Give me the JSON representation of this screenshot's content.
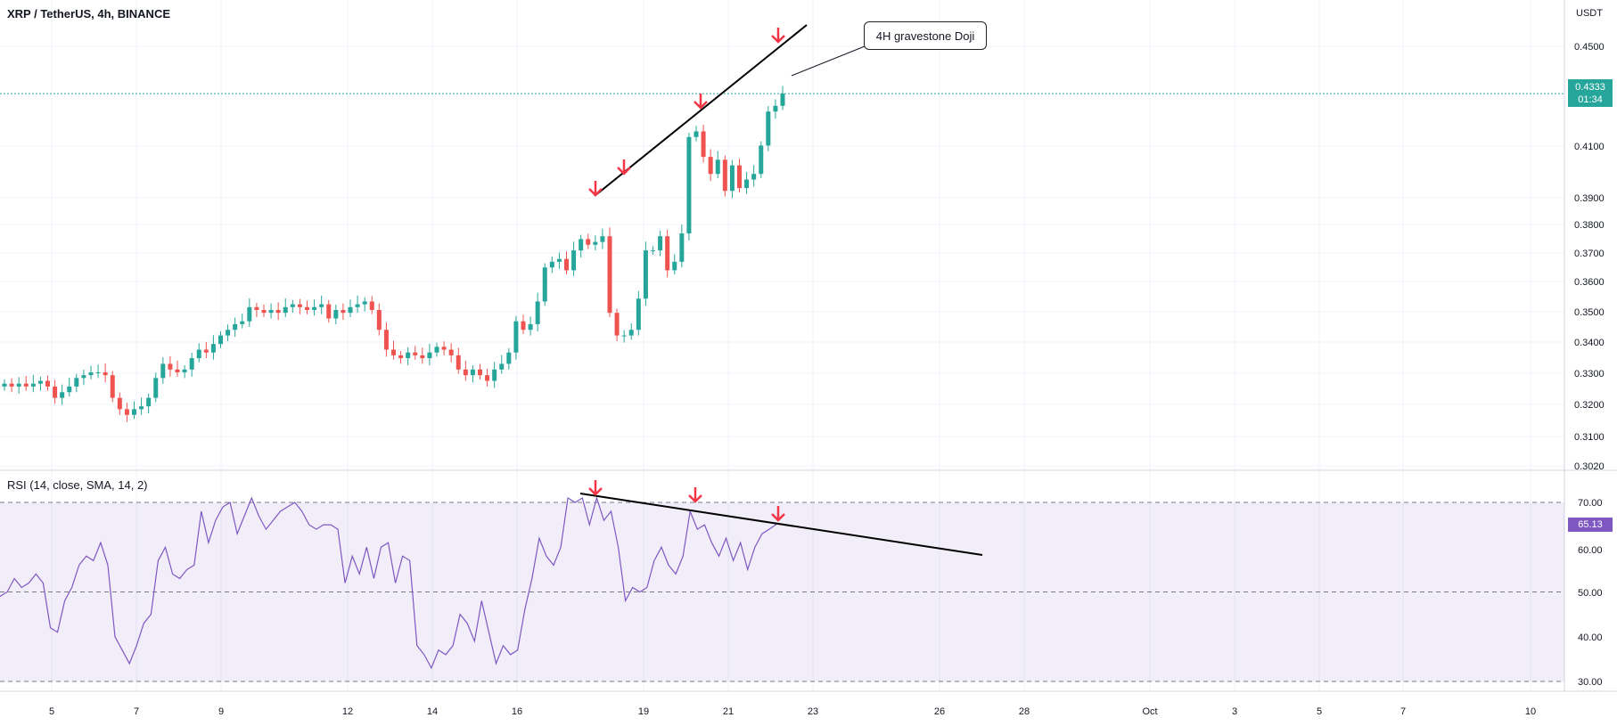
{
  "header": {
    "title": "XRP / TetherUS, 4h, BINANCE"
  },
  "price_axis": {
    "currency": "USDT",
    "ticks": [
      "0.4500",
      "0.4100",
      "0.3900",
      "0.3800",
      "0.3700",
      "0.3600",
      "0.3500",
      "0.3400",
      "0.3300",
      "0.3200",
      "0.3100",
      "0.3020"
    ]
  },
  "last_price": {
    "value": "0.4333",
    "countdown": "01:34",
    "color": "#26a69a"
  },
  "annotation": {
    "text": "4H gravestone Doji"
  },
  "rsi": {
    "title": "RSI (14, close, SMA, 14, 2)",
    "ticks": [
      "70.00",
      "60.00",
      "50.00",
      "40.00",
      "30.00"
    ],
    "current": "65.13",
    "color": "#7e57c2"
  },
  "time_axis": {
    "labels": [
      "5",
      "7",
      "9",
      "12",
      "14",
      "16",
      "19",
      "21",
      "23",
      "26",
      "28",
      "Oct",
      "3",
      "5",
      "7",
      "10"
    ]
  },
  "colors": {
    "up": "#26a69a",
    "down": "#ef5350",
    "arrow": "#f23645",
    "trendline": "#000000"
  },
  "chart_data": [
    {
      "type": "candlestick",
      "title": "XRP / TetherUS, 4h, BINANCE",
      "ylabel": "USDT",
      "ylim": [
        0.302,
        0.462
      ],
      "close_series": [
        0.331,
        0.33,
        0.331,
        0.33,
        0.331,
        0.332,
        0.33,
        0.326,
        0.328,
        0.33,
        0.333,
        0.334,
        0.335,
        0.335,
        0.334,
        0.326,
        0.322,
        0.32,
        0.322,
        0.323,
        0.326,
        0.333,
        0.338,
        0.336,
        0.335,
        0.336,
        0.34,
        0.343,
        0.342,
        0.345,
        0.348,
        0.35,
        0.352,
        0.353,
        0.358,
        0.357,
        0.356,
        0.357,
        0.356,
        0.358,
        0.359,
        0.358,
        0.357,
        0.358,
        0.359,
        0.354,
        0.357,
        0.356,
        0.358,
        0.359,
        0.36,
        0.357,
        0.35,
        0.343,
        0.341,
        0.34,
        0.342,
        0.341,
        0.34,
        0.342,
        0.344,
        0.343,
        0.341,
        0.336,
        0.334,
        0.336,
        0.334,
        0.332,
        0.336,
        0.338,
        0.342,
        0.353,
        0.35,
        0.352,
        0.36,
        0.372,
        0.374,
        0.375,
        0.371,
        0.378,
        0.382,
        0.38,
        0.381,
        0.383,
        0.356,
        0.348,
        0.348,
        0.35,
        0.361,
        0.378,
        0.378,
        0.383,
        0.371,
        0.374,
        0.384,
        0.418,
        0.42,
        0.411,
        0.405,
        0.41,
        0.399,
        0.408,
        0.4,
        0.403,
        0.405,
        0.415,
        0.427,
        0.429,
        0.4333
      ],
      "annotations": [
        "4H gravestone Doji"
      ]
    },
    {
      "type": "line",
      "title": "RSI (14, close, SMA, 14, 2)",
      "ylim": [
        30,
        70
      ],
      "levels": [
        70,
        50,
        30
      ],
      "series": [
        {
          "values": [
            49,
            50,
            53,
            51,
            52,
            54,
            52,
            42,
            41,
            48,
            51,
            56,
            58,
            57,
            61,
            56,
            40,
            37,
            34,
            38,
            43,
            45,
            57,
            60,
            54,
            53,
            55,
            56,
            68,
            61,
            66,
            69,
            70,
            63,
            67,
            71,
            67,
            64,
            66,
            68,
            69,
            70,
            68,
            65,
            64,
            65,
            65,
            64,
            52,
            58,
            54,
            60,
            53,
            60,
            61,
            52,
            58,
            57,
            38,
            36,
            33,
            37,
            36,
            38,
            45,
            43,
            39,
            48,
            41,
            34,
            38,
            36,
            37,
            46,
            53,
            62,
            58,
            56,
            60,
            71,
            70,
            71,
            65,
            71,
            66,
            68,
            60,
            48,
            51,
            50,
            51,
            57,
            60,
            56,
            54,
            58,
            68,
            64,
            65,
            61,
            58,
            62,
            57,
            61,
            55,
            60,
            63,
            64,
            65.13
          ]
        }
      ]
    }
  ]
}
